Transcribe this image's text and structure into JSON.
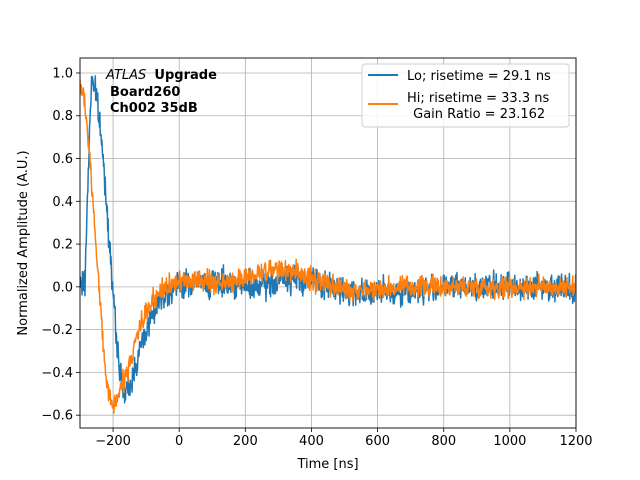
{
  "chart_data": {
    "type": "line",
    "title": "",
    "xlabel": "Time [ns]",
    "ylabel": "Normalized Amplitude (A.U.)",
    "xlim": [
      -300,
      1200
    ],
    "ylim": [
      -0.66,
      1.07
    ],
    "xticks": [
      -200,
      0,
      200,
      400,
      600,
      800,
      1000,
      1200
    ],
    "xtick_labels": [
      "−200",
      "0",
      "200",
      "400",
      "600",
      "800",
      "1000",
      "1200"
    ],
    "yticks": [
      -0.6,
      -0.4,
      -0.2,
      0.0,
      0.2,
      0.4,
      0.6,
      0.8,
      1.0
    ],
    "ytick_labels": [
      "−0.6",
      "−0.4",
      "−0.2",
      "0.0",
      "0.2",
      "0.4",
      "0.6",
      "0.8",
      "1.0"
    ],
    "grid": true,
    "legend_position": "top-right",
    "annotation": {
      "italic": "ATLAS",
      "bold": "Upgrade",
      "line2": "Board260",
      "line3": "Ch002 35dB"
    },
    "series": [
      {
        "name": "Lo; risetime = 29.1 ns",
        "color": "#1f77b4",
        "noise": 0.045,
        "x": [
          -300,
          -285,
          -275,
          -265,
          -255,
          -245,
          -235,
          -225,
          -215,
          -205,
          -195,
          -185,
          -175,
          -165,
          -155,
          -145,
          -135,
          -120,
          -100,
          -80,
          -60,
          -40,
          -20,
          0,
          50,
          100,
          150,
          200,
          250,
          300,
          350,
          400,
          450,
          500,
          600,
          700,
          800,
          900,
          1000,
          1100,
          1200
        ],
        "values": [
          0.0,
          0.02,
          0.55,
          0.98,
          0.93,
          0.83,
          0.68,
          0.5,
          0.3,
          0.08,
          -0.15,
          -0.32,
          -0.43,
          -0.5,
          -0.49,
          -0.45,
          -0.38,
          -0.3,
          -0.2,
          -0.12,
          -0.06,
          -0.02,
          -0.01,
          0.01,
          0.02,
          0.02,
          0.02,
          0.0,
          0.0,
          0.03,
          0.04,
          0.03,
          0.0,
          -0.02,
          -0.03,
          -0.02,
          0.0,
          0.0,
          0.0,
          0.0,
          0.0
        ]
      },
      {
        "name": "Hi; risetime = 33.3 ns",
        "color": "#ff7f0e",
        "noise": 0.035,
        "x": [
          -300,
          -290,
          -280,
          -270,
          -260,
          -250,
          -240,
          -230,
          -220,
          -210,
          -200,
          -190,
          -180,
          -165,
          -150,
          -135,
          -120,
          -100,
          -80,
          -60,
          -40,
          -20,
          0,
          50,
          100,
          150,
          200,
          250,
          300,
          350,
          400,
          450,
          500,
          600,
          700,
          800,
          900,
          1000,
          1100,
          1200
        ],
        "values": [
          0.95,
          0.9,
          0.78,
          0.6,
          0.38,
          0.15,
          -0.05,
          -0.25,
          -0.42,
          -0.52,
          -0.55,
          -0.52,
          -0.48,
          -0.43,
          -0.36,
          -0.28,
          -0.2,
          -0.12,
          -0.06,
          -0.02,
          0.0,
          0.02,
          0.02,
          0.03,
          0.02,
          0.02,
          0.05,
          0.07,
          0.08,
          0.07,
          0.04,
          0.01,
          -0.01,
          -0.01,
          0.0,
          0.0,
          0.0,
          0.0,
          0.0,
          0.0
        ]
      }
    ],
    "legend_extra": " Gain Ratio = 23.162"
  }
}
